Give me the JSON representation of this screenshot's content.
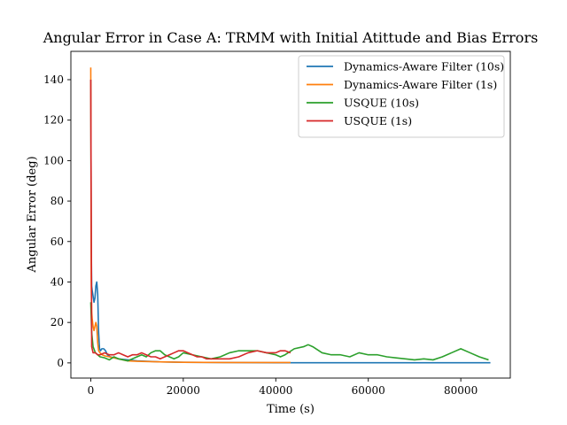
{
  "chart_data": {
    "type": "line",
    "title": "Angular Error in Case A: TRMM with Initial Atittude and Bias Errors",
    "xlabel": "Time (s)",
    "ylabel": "Angular Error (deg)",
    "xlim": [
      -4300,
      90700
    ],
    "ylim": [
      -7.5,
      154
    ],
    "xticks": [
      0,
      20000,
      40000,
      60000,
      80000
    ],
    "xtick_labels": [
      "0",
      "20000",
      "40000",
      "60000",
      "80000"
    ],
    "yticks": [
      0,
      20,
      40,
      60,
      80,
      100,
      120,
      140
    ],
    "ytick_labels": [
      "0",
      "20",
      "40",
      "60",
      "80",
      "100",
      "120",
      "140"
    ],
    "grid": false,
    "legend_position": "top-right",
    "series": [
      {
        "name": "Dynamics-Aware Filter (10s)",
        "color": "#1f77b4",
        "x": [
          0,
          100,
          200,
          300,
          500,
          700,
          900,
          1100,
          1300,
          1500,
          1700,
          1900,
          2100,
          2400,
          2800,
          3200,
          3600,
          4200,
          5000,
          6000,
          8000,
          10000,
          15000,
          20000,
          30000,
          40000,
          50000,
          60000,
          70000,
          80000,
          86400
        ],
        "y": [
          140,
          60,
          38,
          36,
          33,
          30,
          32,
          38,
          40,
          34,
          15,
          7,
          6,
          7,
          7,
          6,
          4,
          3,
          2.5,
          2,
          1.5,
          1,
          0.5,
          0.3,
          0.2,
          0.1,
          0.1,
          0.1,
          0.1,
          0.1,
          0.1
        ]
      },
      {
        "name": "Dynamics-Aware Filter (1s)",
        "color": "#ff7f0e",
        "x": [
          0,
          50,
          100,
          200,
          300,
          500,
          700,
          900,
          1100,
          1300,
          1500,
          1700,
          2000,
          2500,
          3000,
          4000,
          5000,
          6000,
          8000,
          10000,
          15000,
          20000,
          30000,
          40000,
          43200
        ],
        "y": [
          146,
          100,
          40,
          25,
          22,
          18,
          16,
          18,
          20,
          18,
          10,
          6,
          5,
          4,
          3.5,
          3,
          2.5,
          2,
          1,
          0.8,
          0.5,
          0.3,
          0.2,
          0.2,
          0.2
        ]
      },
      {
        "name": "USQUE (10s)",
        "color": "#2ca02c",
        "x": [
          0,
          200,
          500,
          1000,
          1500,
          2000,
          3000,
          4000,
          5000,
          6000,
          7000,
          8000,
          9000,
          10000,
          11000,
          12000,
          13000,
          14000,
          15000,
          16000,
          17000,
          18000,
          19000,
          20000,
          22000,
          24000,
          26000,
          28000,
          30000,
          32000,
          34000,
          36000,
          38000,
          40000,
          41000,
          42000,
          44000,
          46000,
          47000,
          48000,
          50000,
          52000,
          54000,
          56000,
          58000,
          60000,
          62000,
          64000,
          66000,
          68000,
          70000,
          72000,
          74000,
          76000,
          78000,
          80000,
          82000,
          84000,
          86000
        ],
        "y": [
          30,
          15,
          8,
          5,
          4,
          3,
          2.5,
          1.5,
          3,
          2,
          1.5,
          1,
          2,
          3,
          4,
          3,
          5,
          6,
          6,
          4,
          3,
          2,
          3,
          5,
          4,
          3,
          2,
          3,
          5,
          6,
          6,
          6,
          5,
          4,
          3,
          4,
          7,
          8,
          9,
          8,
          5,
          4,
          4,
          3,
          5,
          4,
          4,
          3,
          2.5,
          2,
          1.5,
          2,
          1.5,
          3,
          5,
          7,
          5,
          3,
          1.5
        ]
      },
      {
        "name": "USQUE (1s)",
        "color": "#d62728",
        "x": [
          0,
          200,
          500,
          1000,
          1500,
          2000,
          3000,
          4000,
          5000,
          6000,
          7000,
          8000,
          9000,
          10000,
          11000,
          12000,
          13000,
          14000,
          15000,
          16000,
          17000,
          18000,
          19000,
          20000,
          21000,
          22000,
          23000,
          24000,
          25000,
          26000,
          27000,
          28000,
          29000,
          30000,
          32000,
          34000,
          36000,
          38000,
          40000,
          41000,
          42000,
          43200
        ],
        "y": [
          140,
          8,
          5,
          5,
          4,
          4,
          5,
          4,
          4,
          5,
          4,
          3,
          4,
          4,
          5,
          4,
          3,
          3,
          2,
          3,
          4,
          5,
          6,
          6,
          5,
          4,
          3,
          3,
          2,
          2,
          2,
          2,
          2,
          2,
          3,
          5,
          6,
          5,
          5,
          6,
          6,
          5
        ]
      }
    ]
  }
}
